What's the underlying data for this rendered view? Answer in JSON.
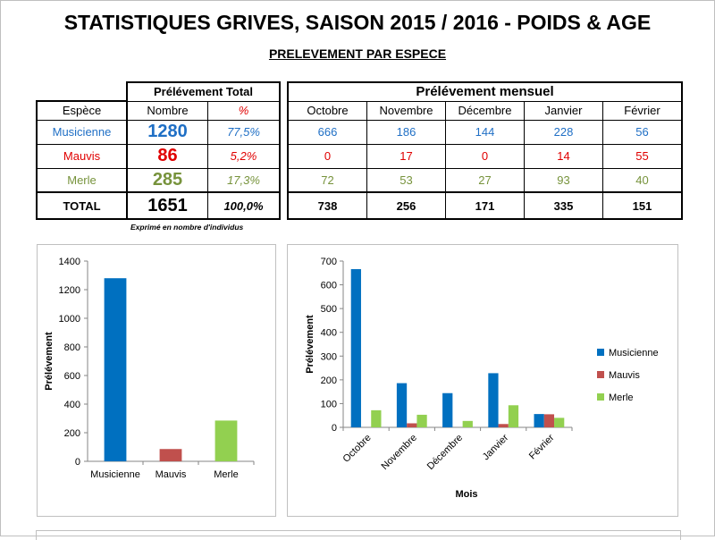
{
  "title": "STATISTIQUES GRIVES, SAISON 2015 / 2016 - POIDS & AGE",
  "subtitle": "PRELEVEMENT PAR ESPECE",
  "colors": {
    "musicienne": "#1F6FC5",
    "mauvis": "#E00000",
    "merle": "#77933C",
    "bar_musicienne": "#0070C0",
    "bar_mauvis": "#C0504D",
    "bar_merle": "#92D050"
  },
  "table": {
    "header_total": "Prélévement Total",
    "header_monthly": "Prélévement mensuel",
    "col_species": "Espèce",
    "col_count": "Nombre",
    "col_pct": "%",
    "months": [
      "Octobre",
      "Novembre",
      "Décembre",
      "Janvier",
      "Février"
    ],
    "rows": [
      {
        "species": "Musicienne",
        "count": "1280",
        "pct": "77,5%",
        "monthly": [
          "666",
          "186",
          "144",
          "228",
          "56"
        ]
      },
      {
        "species": "Mauvis",
        "count": "86",
        "pct": "5,2%",
        "monthly": [
          "0",
          "17",
          "0",
          "14",
          "55"
        ]
      },
      {
        "species": "Merle",
        "count": "285",
        "pct": "17,3%",
        "monthly": [
          "72",
          "53",
          "27",
          "93",
          "40"
        ]
      }
    ],
    "total": {
      "label": "TOTAL",
      "count": "1651",
      "pct": "100,0%",
      "monthly": [
        "738",
        "256",
        "171",
        "335",
        "151"
      ]
    },
    "note": "Exprimé en nombre d'individus"
  },
  "chart_data": [
    {
      "type": "bar",
      "categories": [
        "Musicienne",
        "Mauvis",
        "Merle"
      ],
      "values": [
        1280,
        86,
        285
      ],
      "ylabel": "Prélévement",
      "xlabel": "",
      "ylim": [
        0,
        1400
      ],
      "yticks": [
        0,
        200,
        400,
        600,
        800,
        1000,
        1200,
        1400
      ],
      "grid": false
    },
    {
      "type": "bar",
      "categories": [
        "Octobre",
        "Novembre",
        "Décembre",
        "Janvier",
        "Février"
      ],
      "series": [
        {
          "name": "Musicienne",
          "values": [
            666,
            186,
            144,
            228,
            56
          ]
        },
        {
          "name": "Mauvis",
          "values": [
            0,
            17,
            0,
            14,
            55
          ]
        },
        {
          "name": "Merle",
          "values": [
            72,
            53,
            27,
            93,
            40
          ]
        }
      ],
      "ylabel": "Prélévement",
      "xlabel": "Mois",
      "ylim": [
        0,
        700
      ],
      "yticks": [
        0,
        100,
        200,
        300,
        400,
        500,
        600,
        700
      ],
      "legend": "right",
      "grid": false
    }
  ]
}
